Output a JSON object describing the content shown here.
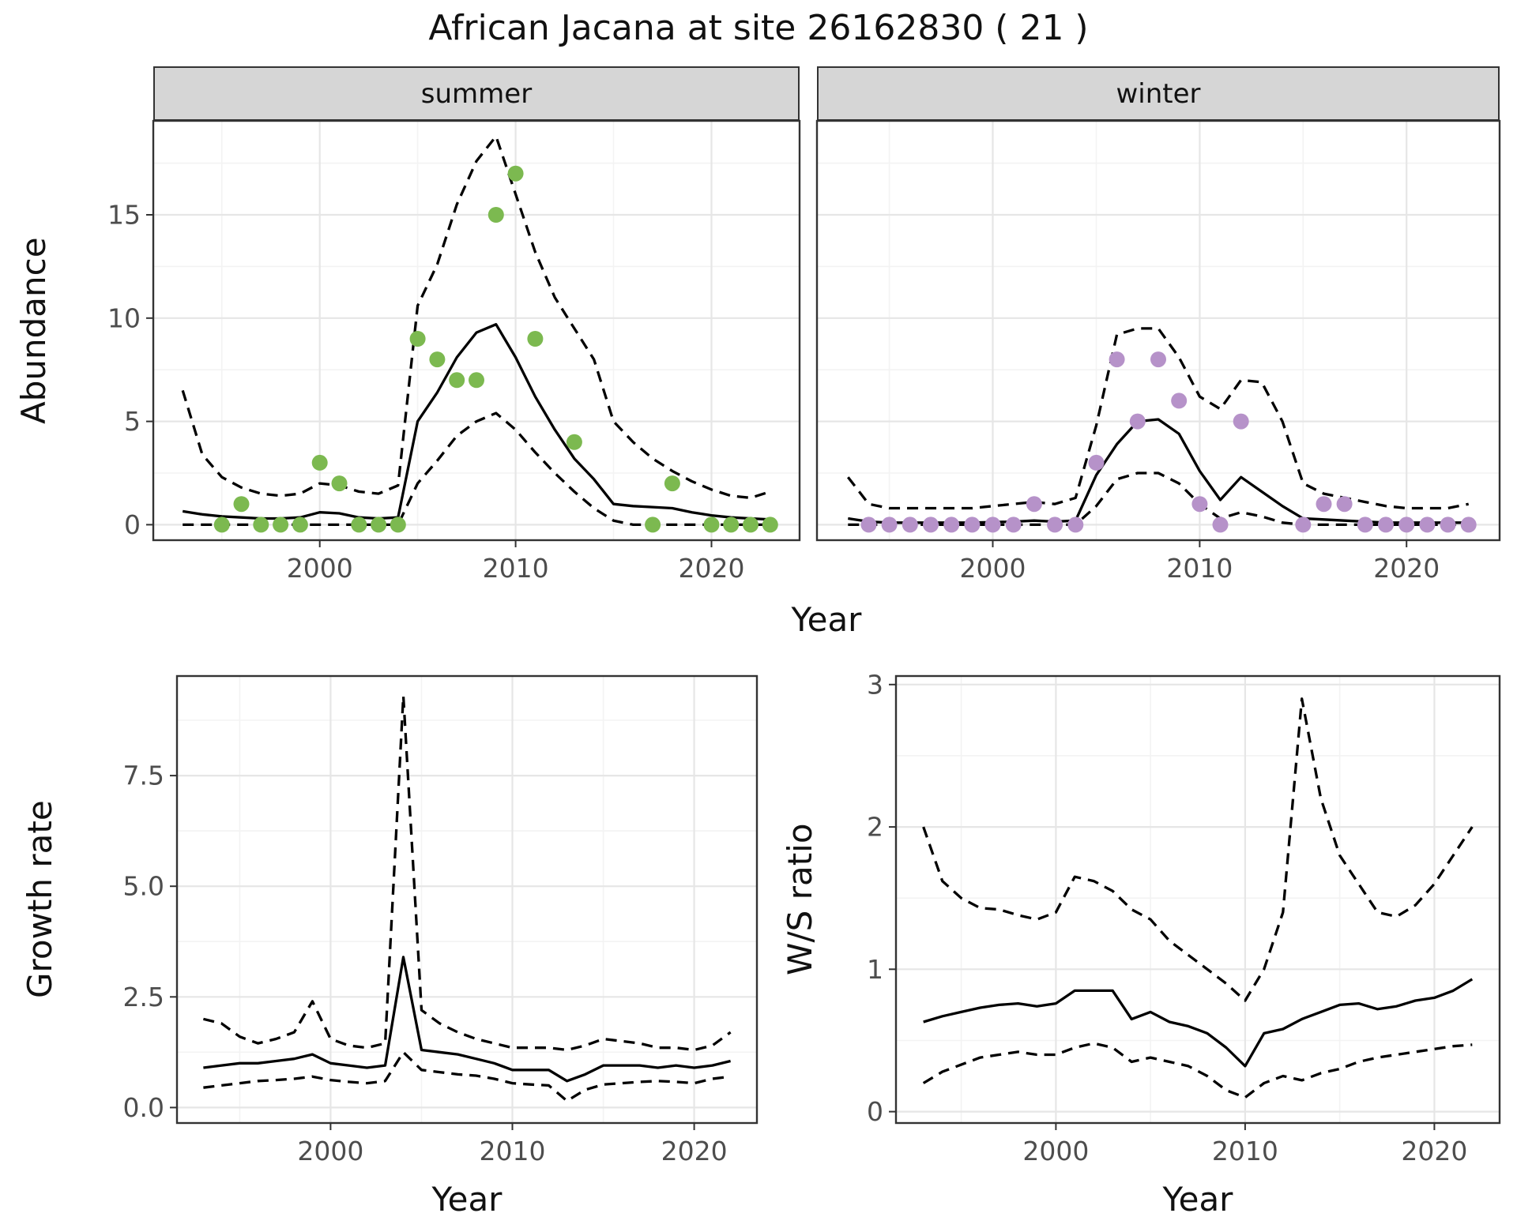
{
  "title": "African Jacana at site 26162830 ( 21 )",
  "facets": [
    "summer",
    "winter"
  ],
  "labels": {
    "abundance": "Abundance",
    "year": "Year",
    "growth": "Growth rate",
    "ws": "W/S ratio"
  },
  "colors": {
    "panel_bg": "#ffffff",
    "grid_major": "#e6e6e6",
    "grid_minor": "#f3f3f3",
    "border": "#333333",
    "axis_text": "#4d4d4d",
    "line": "#000000",
    "summer_point": "#7cb950",
    "winter_point": "#b692c9"
  },
  "chart_data": [
    {
      "id": "summer",
      "type": "line+scatter",
      "facet": "summer",
      "xlabel": "Year",
      "ylabel": "Abundance",
      "xlim": [
        1991.5,
        2024.5
      ],
      "ylim": [
        -0.75,
        19.55
      ],
      "xticks": [
        2000,
        2010,
        2020
      ],
      "xtick_labels": [
        "2000",
        "2010",
        "2020"
      ],
      "yticks": [
        0,
        5,
        10,
        15
      ],
      "ytick_labels": [
        "0",
        "5",
        "10",
        "15"
      ],
      "xminor": [
        1995,
        2005,
        2015
      ],
      "yminor": [
        2.5,
        7.5,
        12.5,
        17.5
      ],
      "x": [
        1993,
        1994,
        1995,
        1996,
        1997,
        1998,
        1999,
        2000,
        2001,
        2002,
        2003,
        2004,
        2005,
        2006,
        2007,
        2008,
        2009,
        2010,
        2011,
        2012,
        2013,
        2014,
        2015,
        2016,
        2017,
        2018,
        2019,
        2020,
        2021,
        2022,
        2023
      ],
      "series": [
        {
          "name": "fit",
          "style": "solid",
          "values": [
            0.65,
            0.5,
            0.4,
            0.35,
            0.3,
            0.3,
            0.35,
            0.6,
            0.55,
            0.35,
            0.3,
            0.35,
            5.0,
            6.4,
            8.1,
            9.3,
            9.7,
            8.1,
            6.2,
            4.6,
            3.2,
            2.2,
            1.0,
            0.9,
            0.85,
            0.8,
            0.6,
            0.45,
            0.35,
            0.3,
            0.25
          ]
        },
        {
          "name": "upper_ci",
          "style": "dashed",
          "values": [
            6.5,
            3.4,
            2.3,
            1.8,
            1.5,
            1.4,
            1.5,
            2.0,
            1.9,
            1.6,
            1.5,
            1.9,
            10.6,
            12.6,
            15.5,
            17.6,
            18.8,
            16.0,
            13.2,
            11.0,
            9.5,
            8.0,
            5.0,
            4.0,
            3.2,
            2.6,
            2.1,
            1.7,
            1.4,
            1.3,
            1.6
          ]
        },
        {
          "name": "lower_ci",
          "style": "dashed",
          "values": [
            0,
            0,
            0,
            0,
            0,
            0,
            0,
            0,
            0,
            0,
            0,
            0,
            2.0,
            3.1,
            4.3,
            5.0,
            5.4,
            4.6,
            3.5,
            2.5,
            1.6,
            0.8,
            0.2,
            0,
            0,
            0,
            0,
            0,
            0,
            0,
            0
          ]
        }
      ],
      "points": {
        "color": "#7cb950",
        "x": [
          1995,
          1996,
          1997,
          1998,
          1999,
          2000,
          2001,
          2002,
          2003,
          2004,
          2005,
          2006,
          2007,
          2008,
          2009,
          2010,
          2011,
          2013,
          2017,
          2018,
          2020,
          2021,
          2022,
          2023
        ],
        "y": [
          0,
          1,
          0,
          0,
          0,
          3,
          2,
          0,
          0,
          0,
          9,
          8,
          7,
          7,
          15,
          17,
          9,
          4,
          0,
          2,
          0,
          0,
          0,
          0
        ]
      }
    },
    {
      "id": "winter",
      "type": "line+scatter",
      "facet": "winter",
      "xlabel": "Year",
      "ylabel": "Abundance",
      "xlim": [
        1991.5,
        2024.5
      ],
      "ylim": [
        -0.75,
        19.55
      ],
      "xticks": [
        2000,
        2010,
        2020
      ],
      "xtick_labels": [
        "2000",
        "2010",
        "2020"
      ],
      "yticks": [
        0,
        5,
        10,
        15
      ],
      "ytick_labels": [
        "0",
        "5",
        "10",
        "15"
      ],
      "xminor": [
        1995,
        2005,
        2015
      ],
      "yminor": [
        2.5,
        7.5,
        12.5,
        17.5
      ],
      "x": [
        1993,
        1994,
        1995,
        1996,
        1997,
        1998,
        1999,
        2000,
        2001,
        2002,
        2003,
        2004,
        2005,
        2006,
        2007,
        2008,
        2009,
        2010,
        2011,
        2012,
        2013,
        2014,
        2015,
        2016,
        2017,
        2018,
        2019,
        2020,
        2021,
        2022,
        2023
      ],
      "series": [
        {
          "name": "fit",
          "style": "solid",
          "values": [
            0.3,
            0.15,
            0.1,
            0.1,
            0.1,
            0.1,
            0.1,
            0.12,
            0.15,
            0.2,
            0.15,
            0.2,
            2.4,
            3.9,
            5.0,
            5.1,
            4.4,
            2.6,
            1.2,
            2.3,
            1.6,
            0.9,
            0.3,
            0.25,
            0.2,
            0.15,
            0.1,
            0.1,
            0.1,
            0.1,
            0.1
          ]
        },
        {
          "name": "upper_ci",
          "style": "dashed",
          "values": [
            2.3,
            1.0,
            0.8,
            0.8,
            0.8,
            0.8,
            0.8,
            0.9,
            1.0,
            1.1,
            1.0,
            1.3,
            4.8,
            9.2,
            9.5,
            9.5,
            8.1,
            6.2,
            5.6,
            7.0,
            6.9,
            5.0,
            2.0,
            1.5,
            1.3,
            1.1,
            0.9,
            0.8,
            0.8,
            0.8,
            1.0
          ]
        },
        {
          "name": "lower_ci",
          "style": "dashed",
          "values": [
            0,
            0,
            0,
            0,
            0,
            0,
            0,
            0,
            0,
            0,
            0,
            0,
            0.9,
            2.2,
            2.5,
            2.5,
            2.0,
            1.0,
            0.3,
            0.6,
            0.4,
            0.1,
            0,
            0,
            0,
            0,
            0,
            0,
            0,
            0,
            0
          ]
        }
      ],
      "points": {
        "color": "#b692c9",
        "x": [
          1994,
          1995,
          1996,
          1997,
          1998,
          1999,
          2000,
          2001,
          2002,
          2003,
          2004,
          2005,
          2006,
          2007,
          2008,
          2009,
          2010,
          2011,
          2012,
          2015,
          2016,
          2017,
          2018,
          2019,
          2020,
          2021,
          2022,
          2023
        ],
        "y": [
          0,
          0,
          0,
          0,
          0,
          0,
          0,
          0,
          1,
          0,
          0,
          3,
          8,
          5,
          8,
          6,
          1,
          0,
          5,
          0,
          1,
          1,
          0,
          0,
          0,
          0,
          0,
          0
        ]
      }
    },
    {
      "id": "growth",
      "type": "line",
      "xlabel": "Year",
      "ylabel": "Growth rate",
      "xlim": [
        1991.55,
        2023.45
      ],
      "ylim": [
        -0.35,
        9.75
      ],
      "xticks": [
        2000,
        2010,
        2020
      ],
      "xtick_labels": [
        "2000",
        "2010",
        "2020"
      ],
      "yticks": [
        0,
        2.5,
        5.0,
        7.5
      ],
      "ytick_labels": [
        "0.0",
        "2.5",
        "5.0",
        "7.5"
      ],
      "xminor": [
        1995,
        2005,
        2015
      ],
      "yminor": [
        1.25,
        3.75,
        6.25,
        8.75
      ],
      "x": [
        1993,
        1994,
        1995,
        1996,
        1997,
        1998,
        1999,
        2000,
        2001,
        2002,
        2003,
        2004,
        2005,
        2006,
        2007,
        2008,
        2009,
        2010,
        2011,
        2012,
        2013,
        2014,
        2015,
        2016,
        2017,
        2018,
        2019,
        2020,
        2021,
        2022
      ],
      "series": [
        {
          "name": "fit",
          "style": "solid",
          "values": [
            0.9,
            0.95,
            1.0,
            1.0,
            1.05,
            1.1,
            1.2,
            1.0,
            0.95,
            0.9,
            0.95,
            3.4,
            1.3,
            1.25,
            1.2,
            1.1,
            1.0,
            0.85,
            0.85,
            0.85,
            0.6,
            0.75,
            0.95,
            0.95,
            0.95,
            0.9,
            0.95,
            0.9,
            0.95,
            1.05
          ]
        },
        {
          "name": "upper_ci",
          "style": "dashed",
          "values": [
            2.0,
            1.9,
            1.6,
            1.45,
            1.55,
            1.7,
            2.4,
            1.55,
            1.4,
            1.35,
            1.45,
            9.3,
            2.2,
            1.9,
            1.7,
            1.55,
            1.45,
            1.35,
            1.35,
            1.35,
            1.3,
            1.4,
            1.55,
            1.5,
            1.45,
            1.35,
            1.35,
            1.3,
            1.4,
            1.7
          ]
        },
        {
          "name": "lower_ci",
          "style": "dashed",
          "values": [
            0.45,
            0.5,
            0.55,
            0.6,
            0.62,
            0.65,
            0.7,
            0.62,
            0.58,
            0.55,
            0.6,
            1.25,
            0.85,
            0.8,
            0.75,
            0.72,
            0.65,
            0.55,
            0.52,
            0.5,
            0.15,
            0.4,
            0.52,
            0.55,
            0.58,
            0.6,
            0.58,
            0.55,
            0.65,
            0.7
          ]
        }
      ]
    },
    {
      "id": "ws",
      "type": "line",
      "xlabel": "Year",
      "ylabel": "W/S ratio",
      "xlim": [
        1991.55,
        2023.45
      ],
      "ylim": [
        -0.08,
        3.06
      ],
      "xticks": [
        2000,
        2010,
        2020
      ],
      "xtick_labels": [
        "2000",
        "2010",
        "2020"
      ],
      "yticks": [
        0,
        1,
        2,
        3
      ],
      "ytick_labels": [
        "0",
        "1",
        "2",
        "3"
      ],
      "xminor": [
        1995,
        2005,
        2015
      ],
      "yminor": [
        0.5,
        1.5,
        2.5
      ],
      "x": [
        1993,
        1994,
        1995,
        1996,
        1997,
        1998,
        1999,
        2000,
        2001,
        2002,
        2003,
        2004,
        2005,
        2006,
        2007,
        2008,
        2009,
        2010,
        2011,
        2012,
        2013,
        2014,
        2015,
        2016,
        2017,
        2018,
        2019,
        2020,
        2021,
        2022
      ],
      "series": [
        {
          "name": "fit",
          "style": "solid",
          "values": [
            0.63,
            0.67,
            0.7,
            0.73,
            0.75,
            0.76,
            0.74,
            0.76,
            0.85,
            0.85,
            0.85,
            0.65,
            0.7,
            0.63,
            0.6,
            0.55,
            0.45,
            0.32,
            0.55,
            0.58,
            0.65,
            0.7,
            0.75,
            0.76,
            0.72,
            0.74,
            0.78,
            0.8,
            0.85,
            0.93
          ]
        },
        {
          "name": "upper_ci",
          "style": "dashed",
          "values": [
            2.0,
            1.62,
            1.5,
            1.43,
            1.42,
            1.38,
            1.35,
            1.4,
            1.65,
            1.62,
            1.55,
            1.42,
            1.35,
            1.2,
            1.1,
            1.0,
            0.9,
            0.78,
            1.0,
            1.4,
            2.9,
            2.2,
            1.8,
            1.6,
            1.4,
            1.37,
            1.45,
            1.6,
            1.8,
            2.0
          ]
        },
        {
          "name": "lower_ci",
          "style": "dashed",
          "values": [
            0.2,
            0.28,
            0.33,
            0.38,
            0.4,
            0.42,
            0.4,
            0.4,
            0.45,
            0.48,
            0.45,
            0.35,
            0.38,
            0.35,
            0.32,
            0.25,
            0.15,
            0.1,
            0.2,
            0.25,
            0.22,
            0.27,
            0.3,
            0.35,
            0.38,
            0.4,
            0.42,
            0.44,
            0.46,
            0.47
          ]
        }
      ]
    }
  ]
}
